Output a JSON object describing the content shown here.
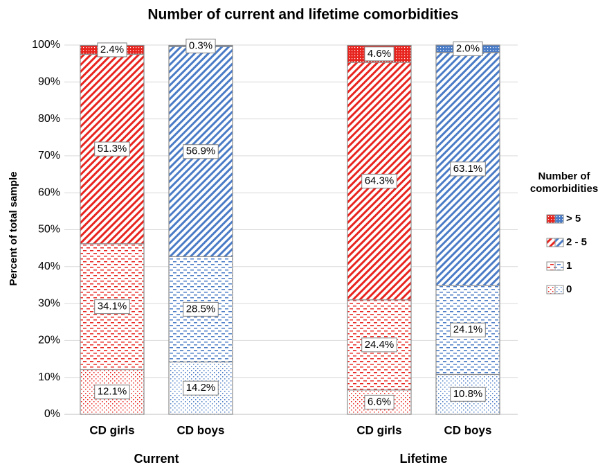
{
  "chart_data": {
    "type": "stacked-bar",
    "title": "Number of current and lifetime comorbidities",
    "y_label": "Percent of total sample",
    "legend_title": "Number of comorbidities",
    "legend_position": "right",
    "categories": [
      "CD girls",
      "CD boys",
      "CD girls",
      "CD boys"
    ],
    "category_colors": [
      "#e8241f",
      "#4a7bc6",
      "#e8241f",
      "#4a7bc6"
    ],
    "group_labels": [
      "Current",
      "Lifetime"
    ],
    "series": [
      {
        "name": "0",
        "pattern": "dots",
        "values": [
          12.1,
          14.2,
          6.6,
          10.8
        ],
        "value_labels": [
          "12.1%",
          "14.2%",
          "6.6%",
          "10.8%"
        ]
      },
      {
        "name": "1",
        "pattern": "dashes",
        "values": [
          34.1,
          28.5,
          24.4,
          24.1
        ],
        "value_labels": [
          "34.1%",
          "28.5%",
          "24.4%",
          "24.1%"
        ]
      },
      {
        "name": "2 - 5",
        "pattern": "diagonal",
        "values": [
          51.3,
          56.9,
          64.3,
          63.1
        ],
        "value_labels": [
          "51.3%",
          "56.9%",
          "64.3%",
          "63.1%"
        ]
      },
      {
        "name": "> 5",
        "pattern": "checker",
        "values": [
          2.4,
          0.3,
          4.6,
          2.0
        ],
        "value_labels": [
          "2.4%",
          "0.3%",
          "4.6%",
          "2.0%"
        ]
      }
    ],
    "ylim": [
      0,
      100
    ],
    "yticks": [
      {
        "value": 0,
        "label": "0%"
      },
      {
        "value": 10,
        "label": "10%"
      },
      {
        "value": 20,
        "label": "20%"
      },
      {
        "value": 30,
        "label": "30%"
      },
      {
        "value": 40,
        "label": "40%"
      },
      {
        "value": 50,
        "label": "50%"
      },
      {
        "value": 60,
        "label": "60%"
      },
      {
        "value": 70,
        "label": "70%"
      },
      {
        "value": 80,
        "label": "80%"
      },
      {
        "value": 90,
        "label": "90%"
      },
      {
        "value": 100,
        "label": "100%"
      }
    ],
    "grid": true
  }
}
